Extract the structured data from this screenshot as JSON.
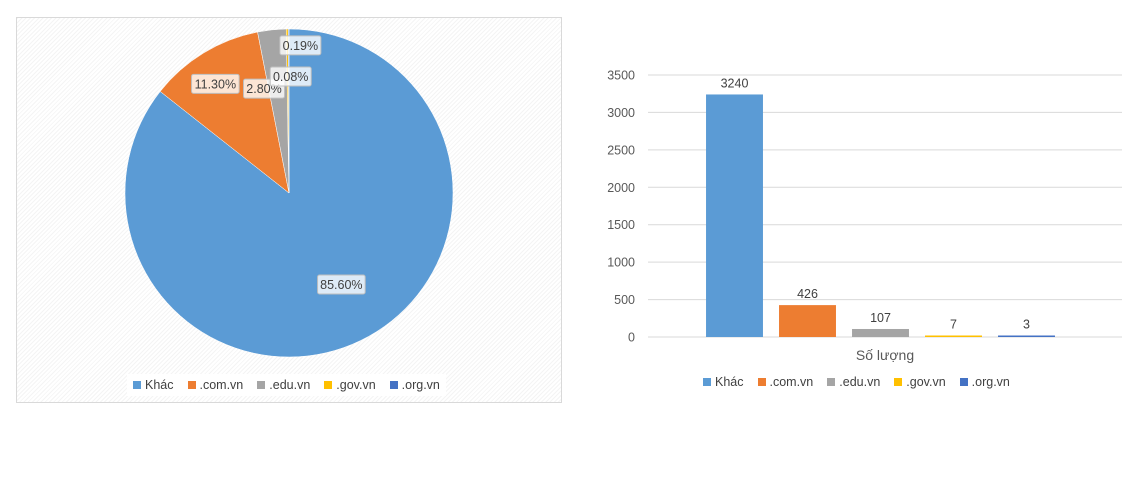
{
  "colors": {
    "khac": "#5b9bd5",
    "com": "#ed7d31",
    "edu": "#a5a5a5",
    "gov": "#ffc000",
    "org": "#4472c4"
  },
  "legend": [
    {
      "label": "Khác",
      "color": "#5b9bd5"
    },
    {
      "label": ".com.vn",
      "color": "#ed7d31"
    },
    {
      "label": ".edu.vn",
      "color": "#a5a5a5"
    },
    {
      "label": ".gov.vn",
      "color": "#ffc000"
    },
    {
      "label": ".org.vn",
      "color": "#4472c4"
    }
  ],
  "chart_data": [
    {
      "type": "pie",
      "slices": [
        {
          "label": "Khác",
          "value": 85.6,
          "data_label": "85.60%",
          "color": "#5b9bd5"
        },
        {
          "label": ".com.vn",
          "value": 11.3,
          "data_label": "11.30%",
          "color": "#ed7d31"
        },
        {
          "label": ".edu.vn",
          "value": 2.8,
          "data_label": "2.80%",
          "color": "#a5a5a5"
        },
        {
          "label": ".gov.vn",
          "value": 0.19,
          "data_label": "0.19%",
          "color": "#ffc000"
        },
        {
          "label": ".org.vn",
          "value": 0.08,
          "data_label": "0.08%",
          "color": "#4472c4"
        }
      ],
      "start_angle_deg": 0,
      "direction": "clockwise",
      "legend_position": "bottom"
    },
    {
      "type": "bar",
      "xlabel": "Số lượng",
      "ylim": [
        0,
        3500
      ],
      "yticks": [
        0,
        500,
        1000,
        1500,
        2000,
        2500,
        3000,
        3500
      ],
      "grid": true,
      "series": [
        {
          "name": "Khác",
          "values": [
            3240
          ],
          "color": "#5b9bd5"
        },
        {
          "name": ".com.vn",
          "values": [
            426
          ],
          "color": "#ed7d31"
        },
        {
          "name": ".edu.vn",
          "values": [
            107
          ],
          "color": "#a5a5a5"
        },
        {
          "name": ".gov.vn",
          "values": [
            7
          ],
          "color": "#ffc000"
        },
        {
          "name": ".org.vn",
          "values": [
            3
          ],
          "color": "#4472c4"
        }
      ],
      "legend_position": "bottom"
    }
  ]
}
